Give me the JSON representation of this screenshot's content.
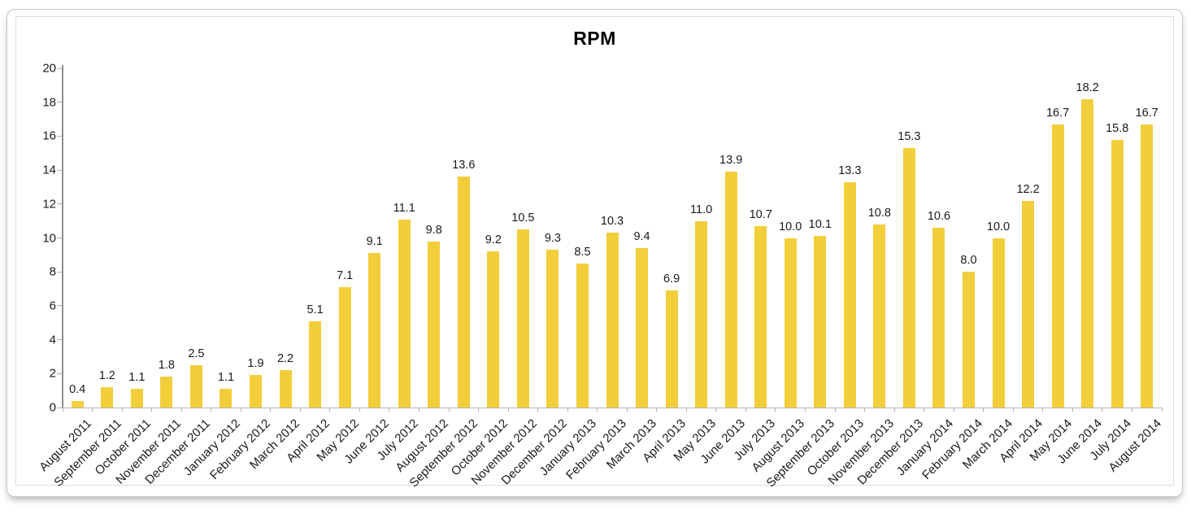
{
  "chart_data": {
    "type": "bar",
    "title": "RPM",
    "categories": [
      "August 2011",
      "September 2011",
      "October 2011",
      "November 2011",
      "December 2011",
      "January 2012",
      "February 2012",
      "March 2012",
      "April 2012",
      "May 2012",
      "June 2012",
      "July 2012",
      "August 2012",
      "September 2012",
      "October 2012",
      "November 2012",
      "December 2012",
      "January 2013",
      "February 2013",
      "March 2013",
      "April 2013",
      "May 2013",
      "June 2013",
      "July 2013",
      "August 2013",
      "September 2013",
      "October 2013",
      "November 2013",
      "December 2013",
      "January 2014",
      "February 2014",
      "March 2014",
      "April 2014",
      "May 2014",
      "June 2014",
      "July 2014",
      "August 2014"
    ],
    "values": [
      0.4,
      1.2,
      1.1,
      1.8,
      2.5,
      1.1,
      1.9,
      2.2,
      5.1,
      7.1,
      9.1,
      11.1,
      9.8,
      13.6,
      9.2,
      10.5,
      9.3,
      8.5,
      10.3,
      9.4,
      6.9,
      11.0,
      13.9,
      10.7,
      10.0,
      10.1,
      13.3,
      10.8,
      15.3,
      10.6,
      8.0,
      10.0,
      12.2,
      16.7,
      18.2,
      15.8,
      16.7
    ],
    "xlabel": "",
    "ylabel": "",
    "ylim": [
      0,
      20
    ],
    "yticks": [
      0,
      2,
      4,
      6,
      8,
      10,
      12,
      14,
      16,
      18,
      20
    ],
    "grid": false,
    "legend": "none",
    "value_labels": true,
    "value_label_decimals": 1
  },
  "colors": {
    "bar": "#F2CE3A",
    "y_axis_line": "#8f8f8f",
    "x_axis_line": "#b3b3b3",
    "tick": "#b3b3b3",
    "label_text": "#1a1a1a"
  }
}
